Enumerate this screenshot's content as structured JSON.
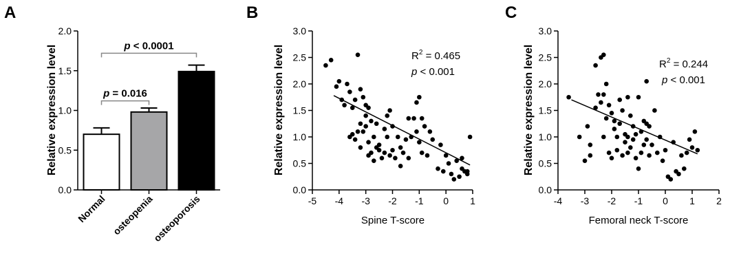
{
  "chart_data": [
    {
      "panel": "A",
      "type": "bar",
      "categories": [
        "Normal",
        "osteopenia",
        "osteoporosis"
      ],
      "values": [
        0.7,
        0.98,
        1.49
      ],
      "errors": [
        0.08,
        0.05,
        0.08
      ],
      "bar_colors": [
        "#ffffff",
        "#a6a6a8",
        "#000000"
      ],
      "ylabel": "Relative expression level",
      "ylim": [
        0,
        2.0
      ],
      "yticks": [
        "0.0",
        "0.5",
        "1.0",
        "1.5",
        "2.0"
      ],
      "comparisons": [
        {
          "label_p": "p",
          "label_rest": " = 0.016",
          "from": 0,
          "to": 1,
          "y": 1.12
        },
        {
          "label_p": "p",
          "label_rest": " < 0.0001",
          "from": 0,
          "to": 2,
          "y": 1.72
        }
      ]
    },
    {
      "panel": "B",
      "type": "scatter",
      "xlabel": "Spine T-score",
      "ylabel": "Relative expression level",
      "xlim": [
        -5,
        1
      ],
      "ylim": [
        0,
        3.0
      ],
      "xticks": [
        "-5",
        "-4",
        "-3",
        "-2",
        "-1",
        "0",
        "1"
      ],
      "yticks": [
        "0.0",
        "0.5",
        "1.0",
        "1.5",
        "2.0",
        "2.5",
        "3.0"
      ],
      "stat_r2_label": "R",
      "stat_r2_sup": "2",
      "stat_r2_value": " = 0.465",
      "stat_p_label": "p",
      "stat_p_value": " < 0.001",
      "fit_line": {
        "x": [
          -4.2,
          0.9
        ],
        "y": [
          1.78,
          0.47
        ]
      },
      "x": [
        -4.5,
        -4.3,
        -4.1,
        -4.0,
        -3.9,
        -3.8,
        -3.7,
        -3.6,
        -3.5,
        -3.5,
        -3.4,
        -3.3,
        -3.3,
        -3.2,
        -3.2,
        -3.1,
        -3.1,
        -3.0,
        -3.0,
        -3.0,
        -2.9,
        -2.9,
        -2.8,
        -2.8,
        -2.7,
        -2.7,
        -2.6,
        -2.6,
        -2.5,
        -2.4,
        -2.3,
        -2.3,
        -2.2,
        -2.2,
        -2.1,
        -2.1,
        -2.0,
        -2.0,
        -1.9,
        -1.8,
        -1.7,
        -1.7,
        -1.6,
        -1.5,
        -1.4,
        -1.4,
        -1.3,
        -1.2,
        -1.1,
        -1.0,
        -1.0,
        -0.9,
        -0.9,
        -0.8,
        -0.7,
        -0.6,
        -0.5,
        -0.3,
        -0.2,
        -0.1,
        0.0,
        0.1,
        0.2,
        0.3,
        0.4,
        0.5,
        0.6,
        0.7,
        0.8,
        0.9,
        0.6,
        0.8,
        -3.2,
        -3.4,
        -2.9,
        -1.1,
        -2.5,
        -3.6
      ],
      "y": [
        2.35,
        2.45,
        1.95,
        2.05,
        1.7,
        1.6,
        2.0,
        1.85,
        1.05,
        1.55,
        1.7,
        2.55,
        1.1,
        1.9,
        1.25,
        1.75,
        1.1,
        1.6,
        1.4,
        1.2,
        1.55,
        0.9,
        1.3,
        0.7,
        1.0,
        0.55,
        1.25,
        0.8,
        0.85,
        0.6,
        1.15,
        0.7,
        1.4,
        1.0,
        0.65,
        1.5,
        0.75,
        1.2,
        0.6,
        1.0,
        0.8,
        0.45,
        0.7,
        0.95,
        1.35,
        0.6,
        1.0,
        1.35,
        1.65,
        1.75,
        0.9,
        1.35,
        0.7,
        1.2,
        0.65,
        1.1,
        0.95,
        0.4,
        0.85,
        0.35,
        0.65,
        0.5,
        0.3,
        0.2,
        0.55,
        0.25,
        0.4,
        0.35,
        0.3,
        1.0,
        0.6,
        0.35,
        0.8,
        0.95,
        0.65,
        1.1,
        0.75,
        1.0
      ]
    },
    {
      "panel": "C",
      "type": "scatter",
      "xlabel": "Femoral neck T-score",
      "ylabel": "Relative expression level",
      "xlim": [
        -4,
        2
      ],
      "ylim": [
        0,
        3.0
      ],
      "xticks": [
        "-4",
        "-3",
        "-2",
        "-1",
        "0",
        "1",
        "2"
      ],
      "yticks": [
        "0.0",
        "0.5",
        "1.0",
        "1.5",
        "2.0",
        "2.5",
        "3.0"
      ],
      "stat_r2_label": "R",
      "stat_r2_sup": "2",
      "stat_r2_value": " = 0.244",
      "stat_p_label": "p",
      "stat_p_value": " < 0.001",
      "fit_line": {
        "x": [
          -3.5,
          1.2
        ],
        "y": [
          1.7,
          0.68
        ]
      },
      "x": [
        -3.6,
        -3.2,
        -3.0,
        -2.9,
        -2.8,
        -2.6,
        -2.5,
        -2.4,
        -2.3,
        -2.3,
        -2.2,
        -2.2,
        -2.1,
        -2.1,
        -2.0,
        -2.0,
        -1.9,
        -1.9,
        -1.8,
        -1.8,
        -1.7,
        -1.7,
        -1.6,
        -1.6,
        -1.5,
        -1.5,
        -1.4,
        -1.4,
        -1.3,
        -1.3,
        -1.2,
        -1.2,
        -1.1,
        -1.1,
        -1.0,
        -1.0,
        -0.9,
        -0.9,
        -0.8,
        -0.8,
        -0.7,
        -0.7,
        -0.6,
        -0.6,
        -0.5,
        -0.4,
        -0.3,
        -0.2,
        -0.1,
        0.0,
        0.1,
        0.2,
        0.3,
        0.4,
        0.5,
        0.6,
        0.7,
        0.8,
        0.9,
        1.0,
        1.1,
        1.2,
        -2.4,
        -2.3,
        -2.6,
        -1.4,
        -0.7,
        -2.8
      ],
      "y": [
        1.75,
        1.0,
        0.55,
        1.2,
        0.85,
        2.35,
        1.8,
        2.5,
        2.55,
        1.0,
        2.0,
        1.35,
        1.6,
        0.7,
        1.45,
        0.6,
        1.3,
        1.15,
        1.0,
        0.75,
        1.7,
        1.25,
        0.65,
        1.5,
        1.05,
        0.9,
        1.75,
        0.7,
        1.4,
        0.8,
        1.2,
        0.95,
        1.05,
        0.6,
        1.75,
        0.4,
        1.1,
        0.7,
        1.3,
        0.85,
        2.05,
        0.95,
        0.65,
        1.2,
        0.85,
        1.5,
        0.7,
        1.0,
        0.55,
        0.75,
        0.25,
        0.2,
        0.9,
        0.35,
        0.3,
        0.65,
        0.4,
        0.7,
        0.95,
        0.8,
        1.1,
        0.75,
        1.65,
        1.8,
        1.55,
        1.0,
        1.25,
        0.65
      ]
    }
  ]
}
